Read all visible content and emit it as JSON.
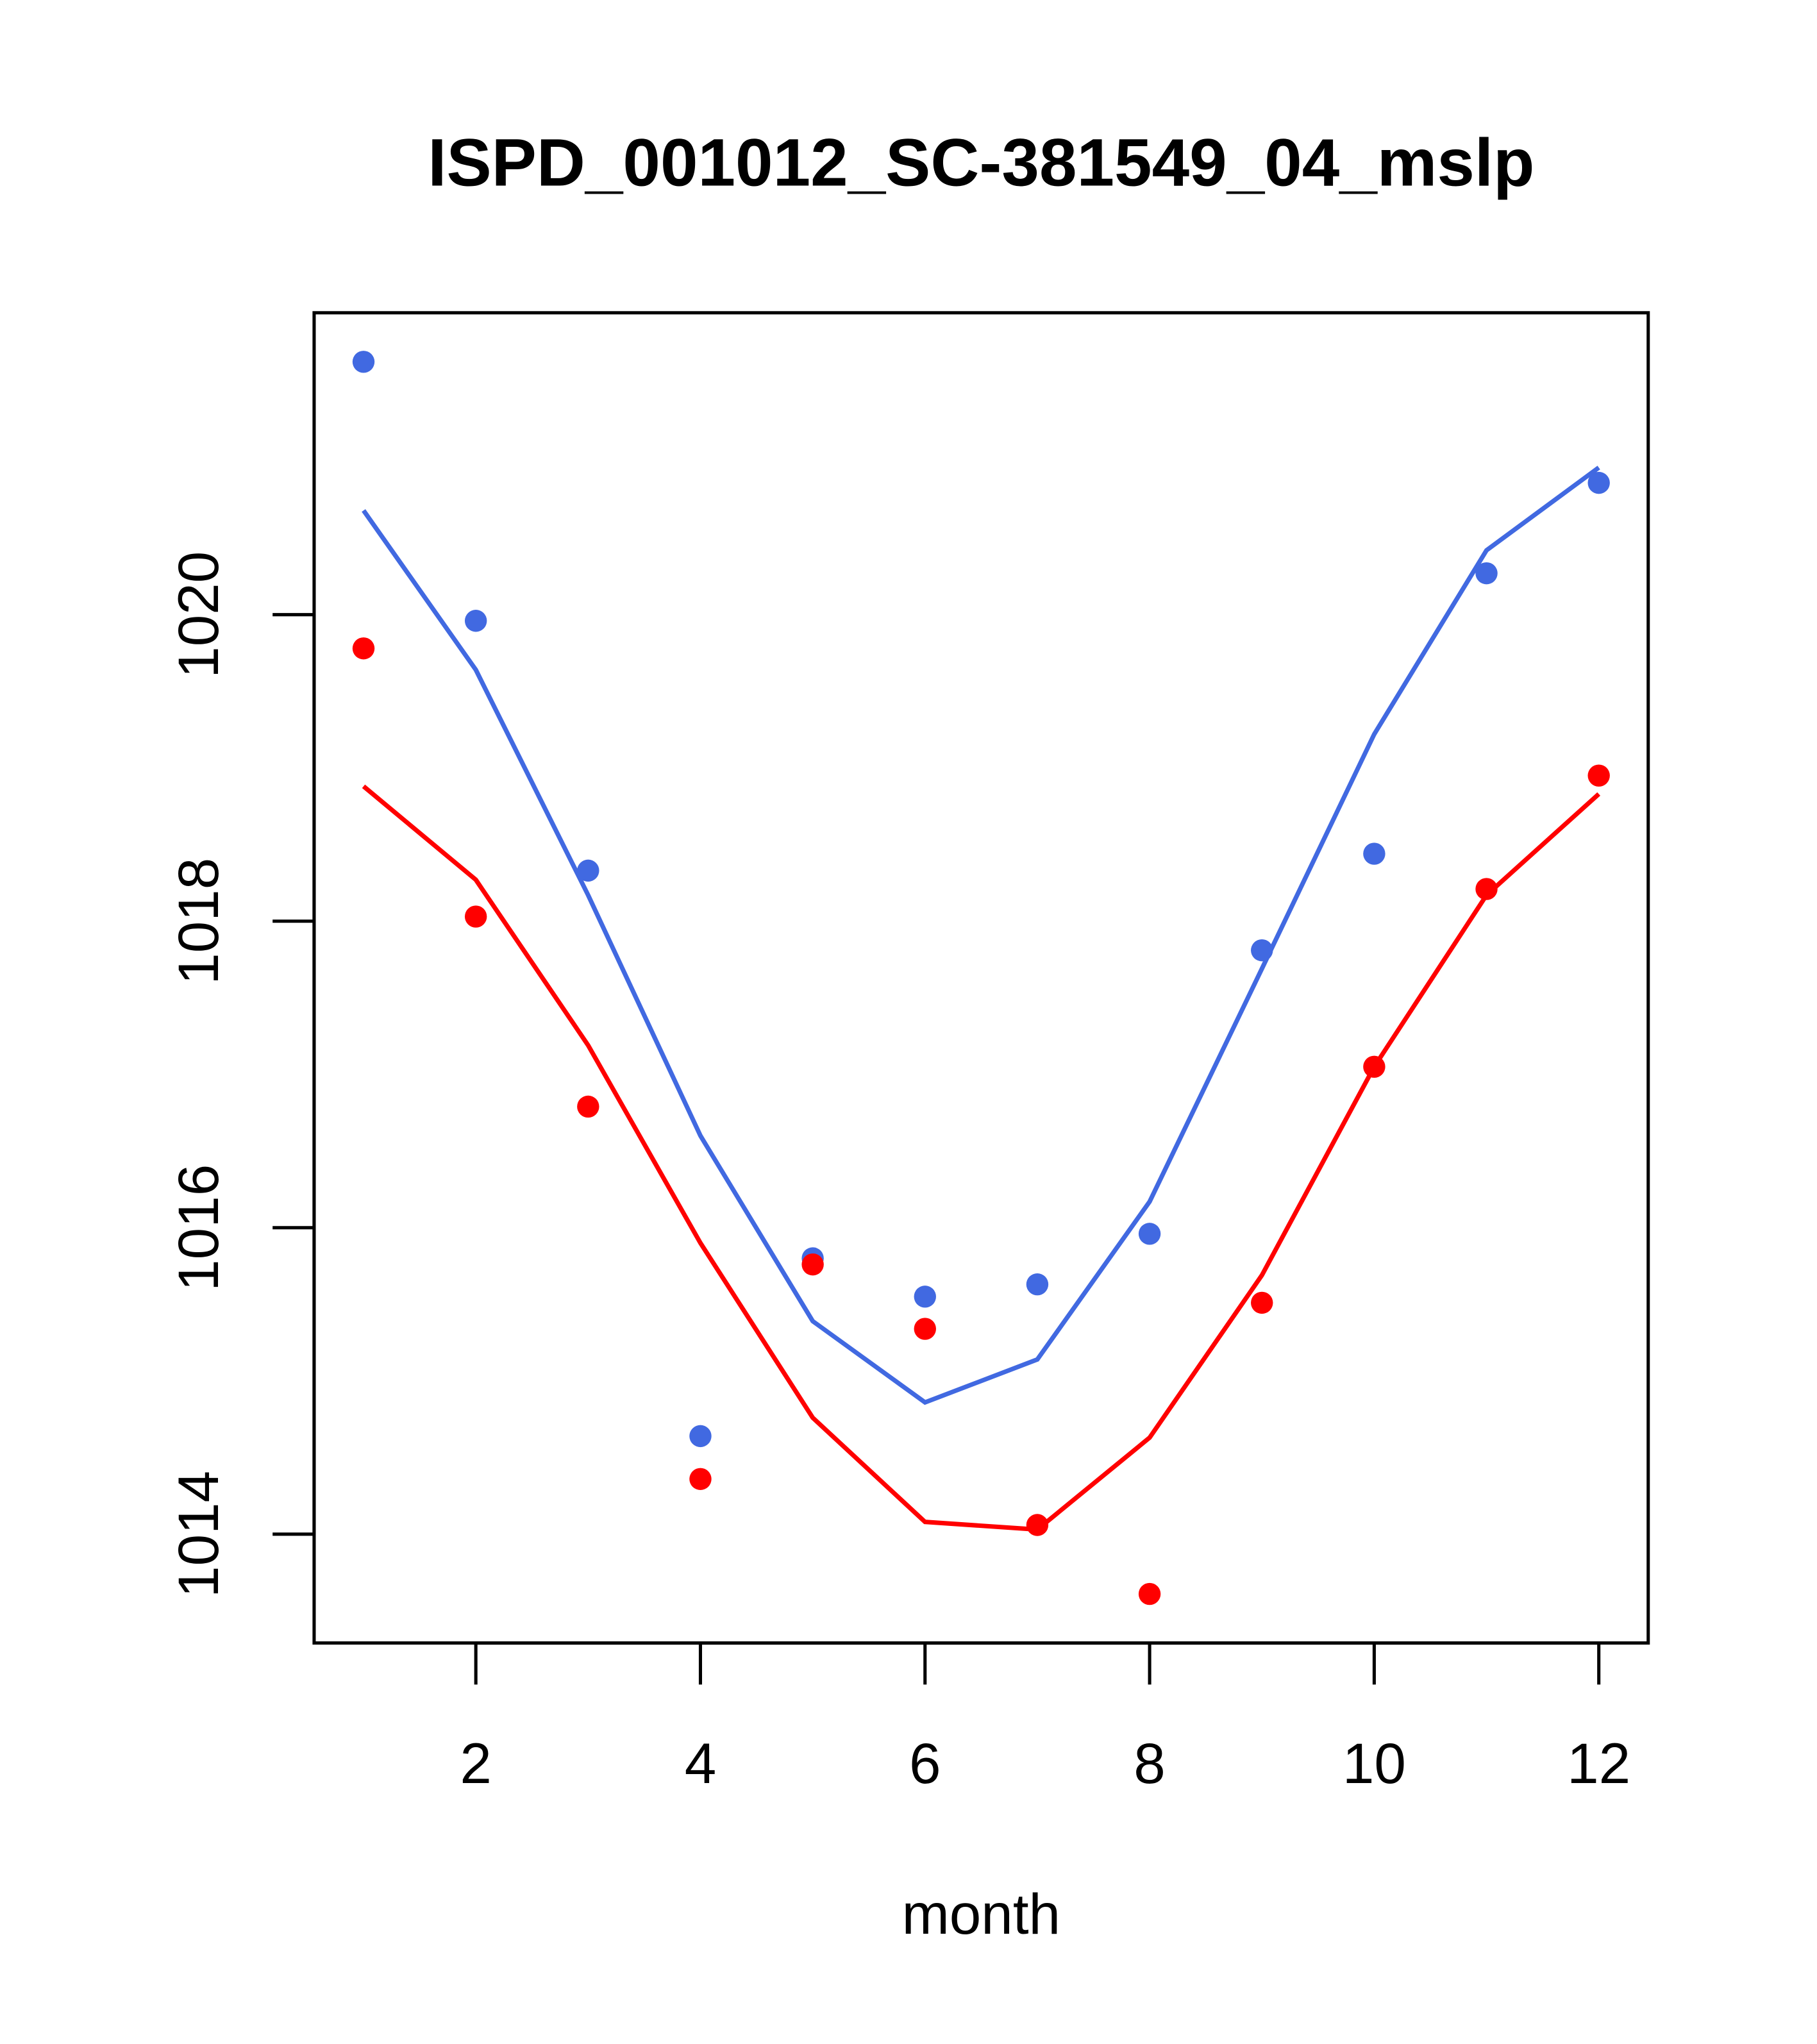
{
  "chart_data": {
    "type": "line",
    "title": "ISPD_001012_SC-381549_04_mslp",
    "xlabel": "month",
    "ylabel": "",
    "xlim": [
      0.56,
      12.44
    ],
    "ylim": [
      1013.29,
      1021.97
    ],
    "xticks": [
      2,
      4,
      6,
      8,
      10,
      12
    ],
    "xtick_labels": [
      "2",
      "4",
      "6",
      "8",
      "10",
      "12"
    ],
    "yticks": [
      1014,
      1016,
      1018,
      1020
    ],
    "ytick_labels": [
      "1014",
      "1016",
      "1018",
      "1020"
    ],
    "grid": false,
    "x": [
      1,
      2,
      3,
      4,
      5,
      6,
      7,
      8,
      9,
      10,
      11,
      12
    ],
    "series": [
      {
        "name": "blue points",
        "kind": "points",
        "color": "#4169E1",
        "values": [
          1021.65,
          1019.96,
          1018.33,
          1014.64,
          1015.8,
          1015.55,
          1015.63,
          1015.96,
          1017.81,
          1018.44,
          1020.27,
          1020.86
        ]
      },
      {
        "name": "red points",
        "kind": "points",
        "color": "#FF0000",
        "values": [
          1019.78,
          1018.03,
          1016.79,
          1014.36,
          1015.76,
          1015.34,
          1014.06,
          1013.61,
          1015.51,
          1017.05,
          1018.21,
          1018.95
        ]
      },
      {
        "name": "blue line",
        "kind": "line",
        "color": "#4169E1",
        "values": [
          1020.68,
          1019.64,
          1018.17,
          1016.6,
          1015.39,
          1014.86,
          1015.14,
          1016.17,
          1017.69,
          1019.22,
          1020.42,
          1020.96
        ]
      },
      {
        "name": "red line",
        "kind": "line",
        "color": "#FF0000",
        "values": [
          1018.88,
          1018.27,
          1017.19,
          1015.9,
          1014.76,
          1014.08,
          1014.03,
          1014.63,
          1015.69,
          1017.05,
          1018.17,
          1018.83
        ]
      }
    ]
  }
}
